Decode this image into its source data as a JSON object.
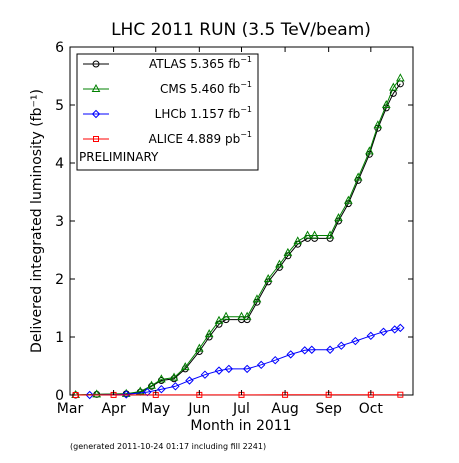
{
  "chart_data": {
    "type": "line",
    "title": "LHC 2011 RUN (3.5 TeV/beam)",
    "xlabel": "Month in 2011",
    "ylabel": "Delivered integrated luminosity (fb⁻¹)",
    "xlim": [
      "2011-03-01",
      "2011-10-31"
    ],
    "ylim": [
      0,
      6
    ],
    "x_ticks": [
      "Mar",
      "Apr",
      "May",
      "Jun",
      "Jul",
      "Aug",
      "Sep",
      "Oct"
    ],
    "y_ticks": [
      0,
      1,
      2,
      3,
      4,
      5,
      6
    ],
    "grid": false,
    "legend_position": "top-left",
    "annotation": "PRELIMINARY",
    "footnote": "(generated 2011-10-24 01:17 including fill 2241)",
    "series": [
      {
        "name": "ATLAS",
        "value_label": "5.365",
        "unit_base": "fb",
        "color": "#000000",
        "marker": "circle",
        "points": [
          [
            "2011-03-05",
            0
          ],
          [
            "2011-03-20",
            0.01
          ],
          [
            "2011-04-10",
            0.02
          ],
          [
            "2011-04-20",
            0.05
          ],
          [
            "2011-04-28",
            0.15
          ],
          [
            "2011-05-05",
            0.25
          ],
          [
            "2011-05-14",
            0.28
          ],
          [
            "2011-05-22",
            0.45
          ],
          [
            "2011-06-01",
            0.75
          ],
          [
            "2011-06-08",
            1.0
          ],
          [
            "2011-06-15",
            1.22
          ],
          [
            "2011-06-20",
            1.3
          ],
          [
            "2011-07-01",
            1.3
          ],
          [
            "2011-07-05",
            1.3
          ],
          [
            "2011-07-12",
            1.6
          ],
          [
            "2011-07-20",
            1.95
          ],
          [
            "2011-07-28",
            2.2
          ],
          [
            "2011-08-03",
            2.4
          ],
          [
            "2011-08-10",
            2.6
          ],
          [
            "2011-08-17",
            2.7
          ],
          [
            "2011-08-22",
            2.7
          ],
          [
            "2011-09-02",
            2.7
          ],
          [
            "2011-09-08",
            3.0
          ],
          [
            "2011-09-15",
            3.3
          ],
          [
            "2011-09-22",
            3.7
          ],
          [
            "2011-09-30",
            4.15
          ],
          [
            "2011-10-06",
            4.6
          ],
          [
            "2011-10-12",
            4.95
          ],
          [
            "2011-10-17",
            5.2
          ],
          [
            "2011-10-22",
            5.365
          ]
        ]
      },
      {
        "name": "CMS",
        "value_label": "5.460",
        "unit_base": "fb",
        "color": "#008000",
        "marker": "triangle",
        "points": [
          [
            "2011-03-05",
            0
          ],
          [
            "2011-03-20",
            0.01
          ],
          [
            "2011-04-10",
            0.02
          ],
          [
            "2011-04-20",
            0.06
          ],
          [
            "2011-04-28",
            0.16
          ],
          [
            "2011-05-05",
            0.27
          ],
          [
            "2011-05-14",
            0.3
          ],
          [
            "2011-05-22",
            0.48
          ],
          [
            "2011-06-01",
            0.8
          ],
          [
            "2011-06-08",
            1.05
          ],
          [
            "2011-06-15",
            1.28
          ],
          [
            "2011-06-20",
            1.35
          ],
          [
            "2011-07-01",
            1.35
          ],
          [
            "2011-07-05",
            1.35
          ],
          [
            "2011-07-12",
            1.65
          ],
          [
            "2011-07-20",
            2.0
          ],
          [
            "2011-07-28",
            2.25
          ],
          [
            "2011-08-03",
            2.45
          ],
          [
            "2011-08-10",
            2.65
          ],
          [
            "2011-08-17",
            2.75
          ],
          [
            "2011-08-22",
            2.75
          ],
          [
            "2011-09-02",
            2.75
          ],
          [
            "2011-09-08",
            3.05
          ],
          [
            "2011-09-15",
            3.35
          ],
          [
            "2011-09-22",
            3.75
          ],
          [
            "2011-09-30",
            4.2
          ],
          [
            "2011-10-06",
            4.65
          ],
          [
            "2011-10-12",
            5.0
          ],
          [
            "2011-10-17",
            5.3
          ],
          [
            "2011-10-22",
            5.46
          ]
        ]
      },
      {
        "name": "LHCb",
        "value_label": "1.157",
        "unit_base": "fb",
        "color": "#0000ff",
        "marker": "diamond",
        "points": [
          [
            "2011-03-15",
            0
          ],
          [
            "2011-04-10",
            0.01
          ],
          [
            "2011-04-25",
            0.05
          ],
          [
            "2011-05-05",
            0.1
          ],
          [
            "2011-05-15",
            0.15
          ],
          [
            "2011-05-25",
            0.25
          ],
          [
            "2011-06-05",
            0.35
          ],
          [
            "2011-06-15",
            0.42
          ],
          [
            "2011-06-22",
            0.45
          ],
          [
            "2011-07-05",
            0.45
          ],
          [
            "2011-07-15",
            0.52
          ],
          [
            "2011-07-25",
            0.6
          ],
          [
            "2011-08-05",
            0.7
          ],
          [
            "2011-08-15",
            0.77
          ],
          [
            "2011-08-20",
            0.78
          ],
          [
            "2011-09-02",
            0.78
          ],
          [
            "2011-09-10",
            0.85
          ],
          [
            "2011-09-20",
            0.93
          ],
          [
            "2011-10-01",
            1.02
          ],
          [
            "2011-10-10",
            1.09
          ],
          [
            "2011-10-18",
            1.13
          ],
          [
            "2011-10-22",
            1.157
          ]
        ]
      },
      {
        "name": "ALICE",
        "value_label": "4.889",
        "unit_base": "pb",
        "color": "#ff0000",
        "marker": "square",
        "points": [
          [
            "2011-03-05",
            0
          ],
          [
            "2011-04-01",
            0.001
          ],
          [
            "2011-05-01",
            0.001
          ],
          [
            "2011-06-01",
            0.002
          ],
          [
            "2011-07-01",
            0.002
          ],
          [
            "2011-08-01",
            0.003
          ],
          [
            "2011-09-01",
            0.004
          ],
          [
            "2011-10-01",
            0.0045
          ],
          [
            "2011-10-22",
            0.004889
          ]
        ]
      }
    ]
  }
}
